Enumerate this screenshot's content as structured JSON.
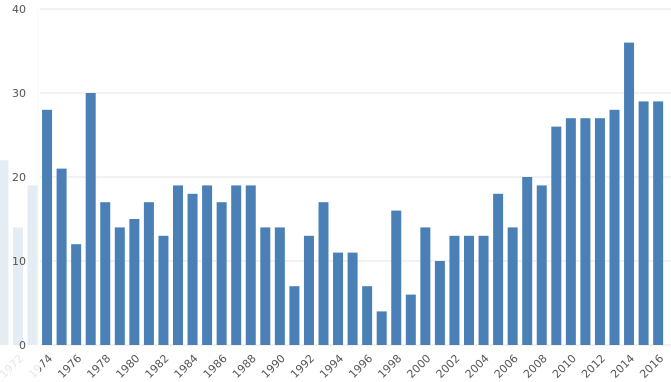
{
  "chart_data": {
    "type": "bar",
    "categories": [
      null,
      "1972",
      null,
      "1974",
      null,
      "1976",
      null,
      "1978",
      null,
      "1980",
      null,
      "1982",
      null,
      "1984",
      null,
      "1986",
      null,
      "1988",
      null,
      "1990",
      null,
      "1992",
      null,
      "1994",
      null,
      "1996",
      null,
      "1998",
      null,
      "2000",
      null,
      "2002",
      null,
      "2004",
      null,
      "2006",
      null,
      "2008",
      null,
      "2010",
      null,
      "2012",
      null,
      "2014",
      null,
      "2016"
    ],
    "values": [
      22,
      14,
      19,
      28,
      21,
      12,
      30,
      17,
      14,
      15,
      17,
      13,
      19,
      18,
      19,
      17,
      19,
      19,
      14,
      14,
      7,
      13,
      17,
      11,
      11,
      7,
      4,
      16,
      6,
      14,
      10,
      13,
      13,
      13,
      18,
      14,
      20,
      19,
      26,
      27,
      27,
      27,
      28,
      36,
      29,
      29
    ],
    "color": "#4a80b6",
    "ylim": [
      0,
      40
    ],
    "yticks": [
      0,
      10,
      20,
      30,
      40
    ],
    "grid": true
  }
}
